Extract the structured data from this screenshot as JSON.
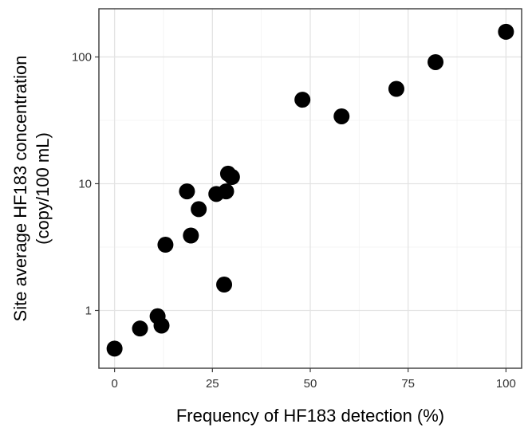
{
  "chart_data": {
    "type": "scatter",
    "title": "",
    "xlabel": "Frequency of HF183 detection (%)",
    "ylabel_lines": [
      "Site average  HF183 concentration",
      "(copy/100 mL)"
    ],
    "xlim": [
      -4,
      104
    ],
    "ylim": [
      0.35,
      240
    ],
    "y_scale": "log",
    "x_ticks": [
      0,
      25,
      50,
      75,
      100
    ],
    "x_tick_labels": [
      "0",
      "25",
      "50",
      "75",
      "100"
    ],
    "y_ticks": [
      1,
      10,
      100
    ],
    "y_tick_labels": [
      "1",
      "10",
      "100"
    ],
    "grid": true,
    "legend": "none",
    "point_color": "#000000",
    "points": [
      {
        "x": 0,
        "y": 0.5
      },
      {
        "x": 6.5,
        "y": 0.72
      },
      {
        "x": 11,
        "y": 0.9
      },
      {
        "x": 12,
        "y": 0.76
      },
      {
        "x": 13,
        "y": 3.3
      },
      {
        "x": 18.5,
        "y": 8.7
      },
      {
        "x": 19.5,
        "y": 3.9
      },
      {
        "x": 21.5,
        "y": 6.3
      },
      {
        "x": 26,
        "y": 8.3
      },
      {
        "x": 28,
        "y": 1.6
      },
      {
        "x": 28.5,
        "y": 8.7
      },
      {
        "x": 29,
        "y": 12
      },
      {
        "x": 30,
        "y": 11.3
      },
      {
        "x": 48,
        "y": 46
      },
      {
        "x": 58,
        "y": 34
      },
      {
        "x": 72,
        "y": 56
      },
      {
        "x": 82,
        "y": 91
      },
      {
        "x": 100,
        "y": 158
      }
    ]
  }
}
